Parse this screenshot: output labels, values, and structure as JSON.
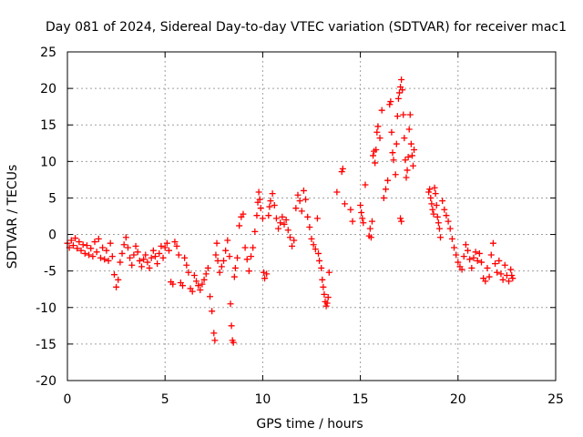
{
  "colors": {
    "series": "#ff0000",
    "grid": "#a0a0a0",
    "axis": "#000000",
    "background": "#ffffff"
  },
  "chart_data": {
    "type": "scatter",
    "title": "Day 081 of 2024, Sidereal Day-to-day VTEC variation (SDTVAR) for receiver mac1",
    "xlabel": "GPS time / hours",
    "ylabel": "SDTVAR / TECUs",
    "xlim": [
      0,
      25
    ],
    "ylim": [
      -20,
      25
    ],
    "xticks": [
      0,
      5,
      10,
      15,
      20,
      25
    ],
    "yticks": [
      -20,
      -15,
      -10,
      -5,
      0,
      5,
      10,
      15,
      20,
      25
    ],
    "xtick_labels": [
      "0",
      "5",
      "10",
      "15",
      "20",
      "25"
    ],
    "ytick_labels": [
      "-20",
      "-15",
      "-10",
      "-5",
      "0",
      "5",
      "10",
      "15",
      "20",
      "25"
    ],
    "grid": true,
    "marker": "+",
    "series": [
      {
        "name": "SDTVAR",
        "points": [
          [
            0.0,
            -1.2
          ],
          [
            0.1,
            -1.8
          ],
          [
            0.2,
            -0.8
          ],
          [
            0.3,
            -1.5
          ],
          [
            0.4,
            -0.5
          ],
          [
            0.5,
            -1.9
          ],
          [
            0.6,
            -1.0
          ],
          [
            0.7,
            -2.2
          ],
          [
            0.8,
            -1.4
          ],
          [
            0.9,
            -2.6
          ],
          [
            1.0,
            -1.5
          ],
          [
            1.1,
            -2.8
          ],
          [
            1.2,
            -1.9
          ],
          [
            1.3,
            -3.0
          ],
          [
            1.4,
            -1.0
          ],
          [
            1.5,
            -2.4
          ],
          [
            1.6,
            -0.6
          ],
          [
            1.7,
            -3.2
          ],
          [
            1.8,
            -1.8
          ],
          [
            1.9,
            -3.4
          ],
          [
            2.0,
            -2.2
          ],
          [
            2.1,
            -3.6
          ],
          [
            2.2,
            -1.2
          ],
          [
            2.3,
            -3.0
          ],
          [
            2.4,
            -5.5
          ],
          [
            2.5,
            -7.2
          ],
          [
            2.6,
            -6.2
          ],
          [
            2.7,
            -3.8
          ],
          [
            2.8,
            -2.6
          ],
          [
            2.9,
            -1.4
          ],
          [
            3.0,
            -0.4
          ],
          [
            3.1,
            -1.8
          ],
          [
            3.2,
            -3.2
          ],
          [
            3.3,
            -4.2
          ],
          [
            3.4,
            -2.8
          ],
          [
            3.5,
            -1.6
          ],
          [
            3.6,
            -2.4
          ],
          [
            3.7,
            -3.6
          ],
          [
            3.8,
            -4.4
          ],
          [
            3.9,
            -3.4
          ],
          [
            4.0,
            -2.8
          ],
          [
            4.1,
            -3.8
          ],
          [
            4.2,
            -4.6
          ],
          [
            4.3,
            -3.2
          ],
          [
            4.4,
            -2.2
          ],
          [
            4.5,
            -3.0
          ],
          [
            4.6,
            -4.0
          ],
          [
            4.7,
            -2.6
          ],
          [
            4.8,
            -1.6
          ],
          [
            4.9,
            -3.2
          ],
          [
            5.0,
            -1.8
          ],
          [
            5.1,
            -1.2
          ],
          [
            5.2,
            -2.2
          ],
          [
            5.3,
            -6.5
          ],
          [
            5.4,
            -6.8
          ],
          [
            5.5,
            -1.0
          ],
          [
            5.6,
            -1.6
          ],
          [
            5.7,
            -2.8
          ],
          [
            5.8,
            -6.6
          ],
          [
            5.9,
            -7.0
          ],
          [
            6.0,
            -3.2
          ],
          [
            6.1,
            -4.2
          ],
          [
            6.2,
            -5.2
          ],
          [
            6.3,
            -7.4
          ],
          [
            6.4,
            -7.8
          ],
          [
            6.5,
            -5.6
          ],
          [
            6.6,
            -6.4
          ],
          [
            6.7,
            -7.0
          ],
          [
            6.8,
            -7.6
          ],
          [
            6.9,
            -6.8
          ],
          [
            7.0,
            -6.2
          ],
          [
            7.1,
            -5.4
          ],
          [
            7.2,
            -4.6
          ],
          [
            7.3,
            -8.5
          ],
          [
            7.4,
            -10.5
          ],
          [
            7.5,
            -13.5
          ],
          [
            7.55,
            -14.5
          ],
          [
            7.6,
            -2.8
          ],
          [
            7.65,
            -1.2
          ],
          [
            7.7,
            -3.6
          ],
          [
            7.8,
            -5.2
          ],
          [
            7.9,
            -4.4
          ],
          [
            8.0,
            -3.6
          ],
          [
            8.1,
            -2.2
          ],
          [
            8.2,
            -0.8
          ],
          [
            8.3,
            -3.0
          ],
          [
            8.35,
            -9.5
          ],
          [
            8.4,
            -12.5
          ],
          [
            8.45,
            -14.5
          ],
          [
            8.5,
            -14.8
          ],
          [
            8.55,
            -5.8
          ],
          [
            8.6,
            -4.6
          ],
          [
            8.7,
            -3.2
          ],
          [
            8.8,
            1.2
          ],
          [
            8.9,
            2.4
          ],
          [
            9.0,
            2.8
          ],
          [
            9.1,
            -1.8
          ],
          [
            9.2,
            -3.4
          ],
          [
            9.3,
            -5.0
          ],
          [
            9.4,
            -3.0
          ],
          [
            9.5,
            -1.8
          ],
          [
            9.6,
            0.4
          ],
          [
            9.7,
            2.6
          ],
          [
            9.75,
            4.4
          ],
          [
            9.8,
            5.8
          ],
          [
            9.85,
            4.8
          ],
          [
            9.9,
            3.6
          ],
          [
            10.0,
            2.2
          ],
          [
            10.05,
            -5.2
          ],
          [
            10.1,
            -6.0
          ],
          [
            10.2,
            -5.4
          ],
          [
            10.3,
            2.6
          ],
          [
            10.35,
            3.8
          ],
          [
            10.4,
            4.6
          ],
          [
            10.5,
            5.6
          ],
          [
            10.6,
            4.0
          ],
          [
            10.7,
            2.2
          ],
          [
            10.8,
            0.8
          ],
          [
            10.9,
            1.6
          ],
          [
            11.0,
            2.4
          ],
          [
            11.1,
            1.4
          ],
          [
            11.2,
            2.0
          ],
          [
            11.3,
            0.6
          ],
          [
            11.4,
            -0.4
          ],
          [
            11.5,
            -1.6
          ],
          [
            11.6,
            -0.8
          ],
          [
            11.7,
            3.6
          ],
          [
            11.8,
            5.4
          ],
          [
            11.9,
            4.6
          ],
          [
            12.0,
            3.2
          ],
          [
            12.1,
            6.0
          ],
          [
            12.2,
            4.8
          ],
          [
            12.3,
            2.4
          ],
          [
            12.4,
            1.0
          ],
          [
            12.5,
            -0.6
          ],
          [
            12.6,
            -1.4
          ],
          [
            12.7,
            -2.0
          ],
          [
            12.8,
            2.2
          ],
          [
            12.85,
            -2.6
          ],
          [
            12.9,
            -3.6
          ],
          [
            13.0,
            -4.6
          ],
          [
            13.05,
            -6.2
          ],
          [
            13.1,
            -7.2
          ],
          [
            13.15,
            -8.2
          ],
          [
            13.2,
            -9.2
          ],
          [
            13.25,
            -9.8
          ],
          [
            13.3,
            -9.4
          ],
          [
            13.35,
            -8.6
          ],
          [
            13.4,
            -5.2
          ],
          [
            13.8,
            5.8
          ],
          [
            14.05,
            8.6
          ],
          [
            14.1,
            9.0
          ],
          [
            14.2,
            4.2
          ],
          [
            14.5,
            3.4
          ],
          [
            14.6,
            1.8
          ],
          [
            15.0,
            4.0
          ],
          [
            15.05,
            3.0
          ],
          [
            15.1,
            2.2
          ],
          [
            15.15,
            1.6
          ],
          [
            15.25,
            6.8
          ],
          [
            15.45,
            -0.2
          ],
          [
            15.5,
            0.8
          ],
          [
            15.55,
            -0.4
          ],
          [
            15.6,
            1.8
          ],
          [
            15.65,
            10.8
          ],
          [
            15.7,
            11.4
          ],
          [
            15.75,
            9.8
          ],
          [
            15.8,
            11.6
          ],
          [
            15.85,
            14.0
          ],
          [
            15.9,
            14.8
          ],
          [
            16.0,
            13.2
          ],
          [
            16.1,
            17.0
          ],
          [
            16.2,
            5.0
          ],
          [
            16.3,
            6.2
          ],
          [
            16.4,
            7.4
          ],
          [
            16.5,
            17.8
          ],
          [
            16.55,
            18.2
          ],
          [
            16.6,
            14.0
          ],
          [
            16.65,
            11.2
          ],
          [
            16.7,
            10.2
          ],
          [
            16.8,
            8.2
          ],
          [
            16.85,
            12.4
          ],
          [
            16.9,
            16.2
          ],
          [
            16.95,
            18.6
          ],
          [
            17.0,
            19.4
          ],
          [
            17.05,
            20.2
          ],
          [
            17.1,
            21.2
          ],
          [
            17.15,
            19.8
          ],
          [
            17.2,
            16.4
          ],
          [
            17.25,
            13.2
          ],
          [
            17.3,
            10.2
          ],
          [
            17.35,
            7.8
          ],
          [
            17.4,
            8.8
          ],
          [
            17.45,
            10.6
          ],
          [
            17.5,
            14.4
          ],
          [
            17.55,
            16.4
          ],
          [
            17.6,
            12.4
          ],
          [
            17.65,
            10.8
          ],
          [
            17.7,
            9.4
          ],
          [
            17.75,
            11.6
          ],
          [
            17.05,
            2.2
          ],
          [
            17.1,
            1.8
          ],
          [
            18.5,
            5.8
          ],
          [
            18.55,
            6.2
          ],
          [
            18.6,
            5.0
          ],
          [
            18.65,
            4.2
          ],
          [
            18.7,
            3.4
          ],
          [
            18.75,
            2.8
          ],
          [
            18.8,
            6.4
          ],
          [
            18.85,
            5.6
          ],
          [
            18.9,
            4.0
          ],
          [
            18.95,
            2.4
          ],
          [
            19.0,
            1.6
          ],
          [
            19.05,
            0.8
          ],
          [
            19.1,
            -0.4
          ],
          [
            19.2,
            4.6
          ],
          [
            19.3,
            3.4
          ],
          [
            19.4,
            2.6
          ],
          [
            19.5,
            1.8
          ],
          [
            19.6,
            0.8
          ],
          [
            19.7,
            -0.6
          ],
          [
            19.8,
            -1.8
          ],
          [
            19.9,
            -2.8
          ],
          [
            20.0,
            -3.8
          ],
          [
            20.1,
            -4.4
          ],
          [
            20.2,
            -4.8
          ],
          [
            20.3,
            -3.0
          ],
          [
            20.4,
            -1.4
          ],
          [
            20.5,
            -2.2
          ],
          [
            20.6,
            -3.4
          ],
          [
            20.7,
            -4.6
          ],
          [
            20.8,
            -3.2
          ],
          [
            20.9,
            -2.4
          ],
          [
            21.0,
            -3.6
          ],
          [
            21.1,
            -2.6
          ],
          [
            21.2,
            -3.8
          ],
          [
            21.3,
            -6.0
          ],
          [
            21.4,
            -6.4
          ],
          [
            21.5,
            -4.6
          ],
          [
            21.6,
            -5.8
          ],
          [
            21.7,
            -2.8
          ],
          [
            21.8,
            -1.2
          ],
          [
            21.9,
            -4.0
          ],
          [
            22.0,
            -5.2
          ],
          [
            22.1,
            -3.6
          ],
          [
            22.2,
            -5.4
          ],
          [
            22.3,
            -6.2
          ],
          [
            22.4,
            -4.2
          ],
          [
            22.5,
            -5.6
          ],
          [
            22.6,
            -6.4
          ],
          [
            22.7,
            -4.8
          ],
          [
            22.75,
            -5.6
          ],
          [
            22.8,
            -6.0
          ]
        ]
      }
    ]
  }
}
